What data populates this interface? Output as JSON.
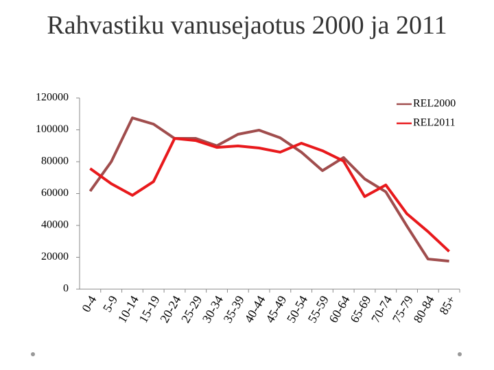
{
  "chart_data": {
    "type": "line",
    "title": "Rahvastiku vanusejaotus 2000 ja 2011",
    "categories": [
      "0-4",
      "5-9",
      "10-14",
      "15-19",
      "20-24",
      "25-29",
      "30-34",
      "35-39",
      "40-44",
      "45-49",
      "50-54",
      "55-59",
      "60-64",
      "65-69",
      "70-74",
      "75-79",
      "80-84",
      "85+"
    ],
    "series": [
      {
        "name": "REL2000",
        "color": "#a04d4d",
        "values": [
          61500,
          80000,
          107500,
          103600,
          94600,
          94600,
          90000,
          97200,
          99800,
          95000,
          86000,
          74400,
          82600,
          69200,
          61100,
          39600,
          18900,
          17600
        ]
      },
      {
        "name": "REL2011",
        "color": "#e8191c",
        "values": [
          75700,
          66200,
          58900,
          67500,
          94600,
          93300,
          89000,
          89900,
          88600,
          86000,
          91600,
          86900,
          80400,
          58100,
          65400,
          47300,
          36100,
          23700
        ]
      }
    ],
    "ylim": [
      0,
      120000
    ],
    "yticks": [
      0,
      20000,
      40000,
      60000,
      80000,
      100000,
      120000
    ],
    "legend": "top-right"
  }
}
